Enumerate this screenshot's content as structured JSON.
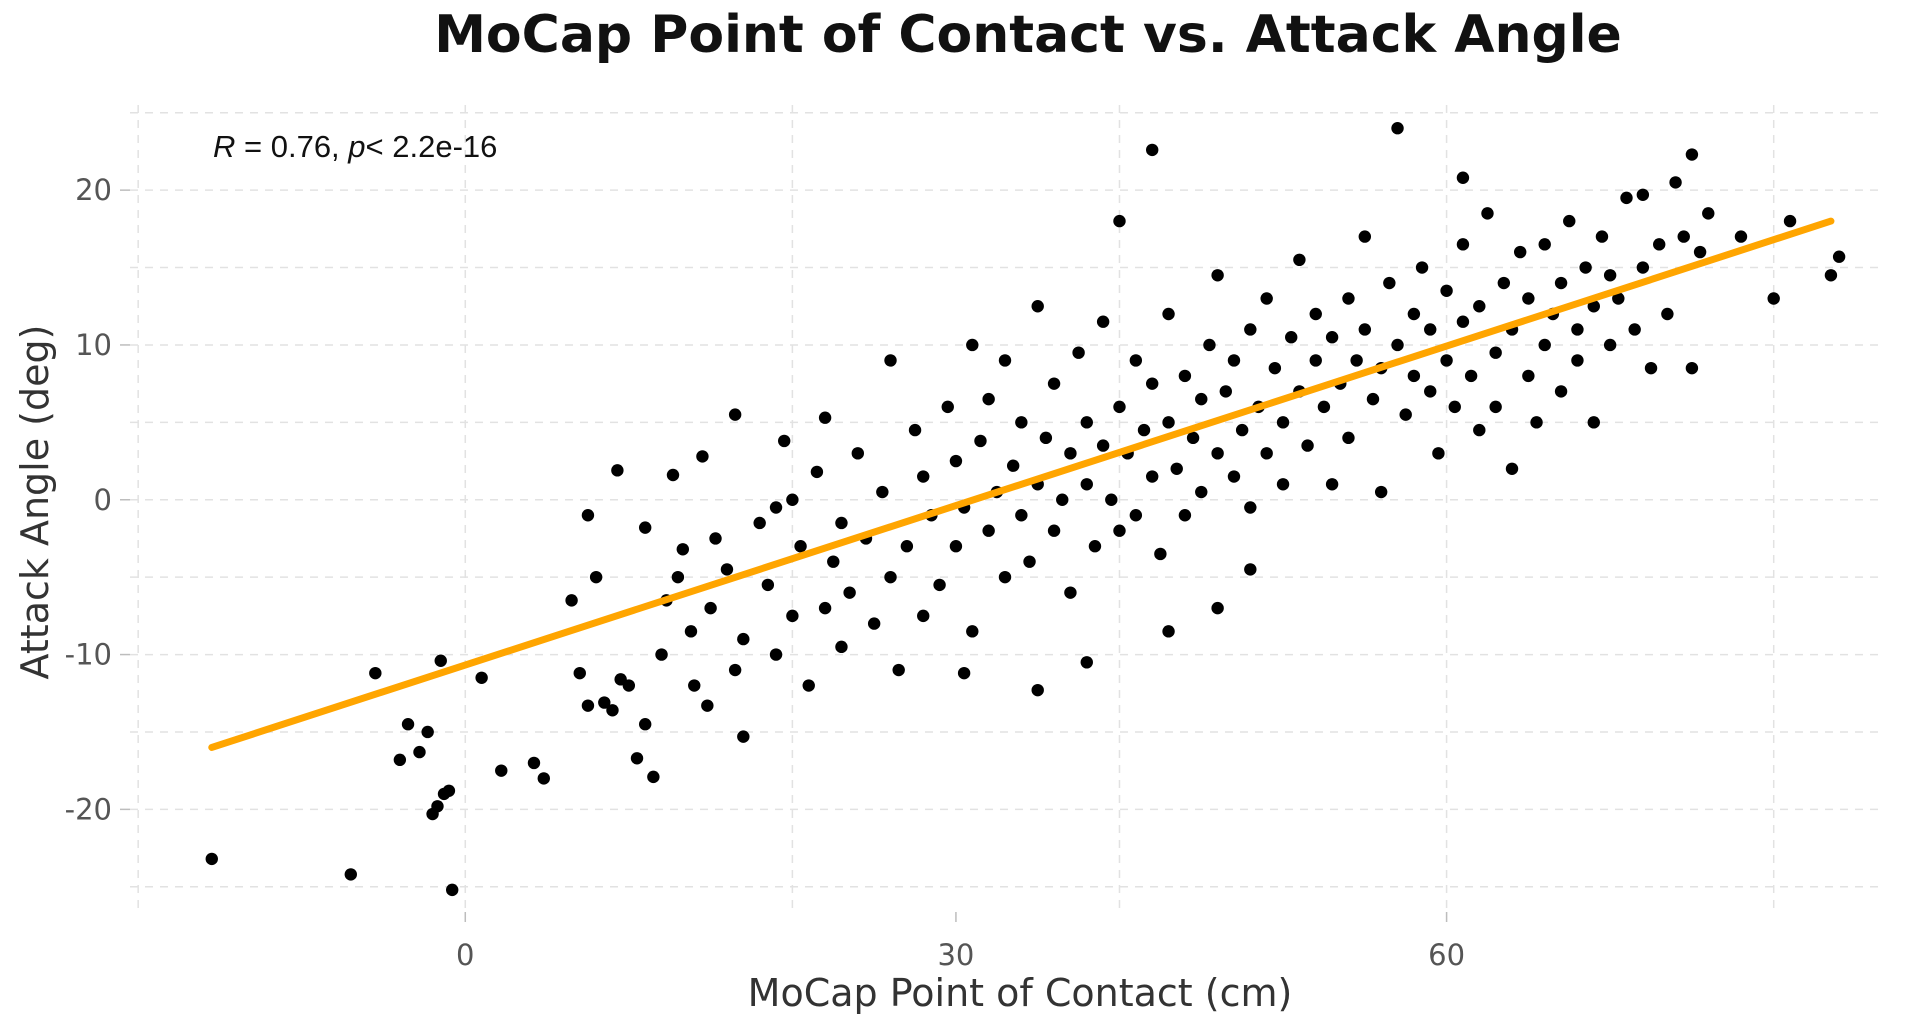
{
  "chart_data": {
    "type": "scatter",
    "title": "MoCap Point of Contact vs. Attack Angle",
    "xlabel": "MoCap Point of Contact (cm)",
    "ylabel": "Attack Angle (deg)",
    "xlim": [
      -20.5,
      86.5
    ],
    "ylim": [
      -26.5,
      25.5
    ],
    "x_ticks": [
      0,
      30,
      60
    ],
    "x_tick_labels": [
      "0",
      "30",
      "60"
    ],
    "y_ticks": [
      -20,
      -10,
      0,
      10,
      20
    ],
    "y_tick_labels": [
      "-20",
      "-10",
      "0",
      "10",
      "20"
    ],
    "grid": true,
    "annotation": {
      "r_symbol": "R",
      "r_text": " = 0.76, ",
      "p_symbol": "p",
      "p_text": "< 2.2e-16"
    },
    "fit_line": {
      "x": [
        -15.5,
        83.5
      ],
      "y": [
        -16.0,
        18.0
      ],
      "color": "#FFA500"
    },
    "series": [
      {
        "color": "#000000",
        "points": [
          [
            -15.5,
            -23.2
          ],
          [
            -7,
            -24.2
          ],
          [
            -5.5,
            -11.2
          ],
          [
            -4,
            -16.8
          ],
          [
            -3.5,
            -14.5
          ],
          [
            -2.8,
            -16.3
          ],
          [
            -2.3,
            -15
          ],
          [
            -2,
            -20.3
          ],
          [
            -1.7,
            -19.8
          ],
          [
            -1.3,
            -19
          ],
          [
            -1,
            -18.8
          ],
          [
            -0.8,
            -25.2
          ],
          [
            -1.5,
            -10.4
          ],
          [
            1,
            -11.5
          ],
          [
            2.2,
            -17.5
          ],
          [
            4.2,
            -17
          ],
          [
            4.8,
            -18
          ],
          [
            6.5,
            -6.5
          ],
          [
            7,
            -11.2
          ],
          [
            7.5,
            -1
          ],
          [
            7.5,
            -13.3
          ],
          [
            8,
            -5
          ],
          [
            8.5,
            -13.1
          ],
          [
            9,
            -13.6
          ],
          [
            9.3,
            1.9
          ],
          [
            9.5,
            -11.6
          ],
          [
            10,
            -12
          ],
          [
            10.5,
            -16.7
          ],
          [
            11,
            -1.8
          ],
          [
            11,
            -14.5
          ],
          [
            11.5,
            -17.9
          ],
          [
            12,
            -10
          ],
          [
            12.3,
            -6.5
          ],
          [
            12.7,
            1.6
          ],
          [
            13,
            -5
          ],
          [
            13.3,
            -3.2
          ],
          [
            13.8,
            -8.5
          ],
          [
            14,
            -12
          ],
          [
            14.5,
            2.8
          ],
          [
            14.8,
            -13.3
          ],
          [
            15,
            -7
          ],
          [
            15.3,
            -2.5
          ],
          [
            16,
            -4.5
          ],
          [
            16.5,
            -11
          ],
          [
            16.5,
            5.5
          ],
          [
            17,
            -9
          ],
          [
            17,
            -15.3
          ],
          [
            18,
            -1.5
          ],
          [
            18.5,
            -5.5
          ],
          [
            19,
            -0.5
          ],
          [
            19,
            -10
          ],
          [
            19.5,
            3.8
          ],
          [
            20,
            0
          ],
          [
            20,
            -7.5
          ],
          [
            20.5,
            -3
          ],
          [
            21,
            -12
          ],
          [
            21.5,
            1.8
          ],
          [
            22,
            -7
          ],
          [
            22,
            5.3
          ],
          [
            22.5,
            -4
          ],
          [
            23,
            -1.5
          ],
          [
            23,
            -9.5
          ],
          [
            23.5,
            -6
          ],
          [
            24,
            3
          ],
          [
            24.5,
            -2.5
          ],
          [
            25,
            -8
          ],
          [
            25.5,
            0.5
          ],
          [
            26,
            -5
          ],
          [
            26,
            9
          ],
          [
            26.5,
            -11
          ],
          [
            27,
            -3
          ],
          [
            27.5,
            4.5
          ],
          [
            28,
            -7.5
          ],
          [
            28,
            1.5
          ],
          [
            28.5,
            -1
          ],
          [
            29,
            -5.5
          ],
          [
            29.5,
            6
          ],
          [
            30,
            -3
          ],
          [
            30,
            2.5
          ],
          [
            30.5,
            -0.5
          ],
          [
            31,
            -8.5
          ],
          [
            31,
            10
          ],
          [
            31.5,
            3.8
          ],
          [
            32,
            -2
          ],
          [
            32,
            6.5
          ],
          [
            32.5,
            0.5
          ],
          [
            33,
            -5
          ],
          [
            33,
            9
          ],
          [
            33.5,
            2.2
          ],
          [
            34,
            -1
          ],
          [
            34,
            5
          ],
          [
            34.5,
            -4
          ],
          [
            35,
            1
          ],
          [
            35,
            12.5
          ],
          [
            35.5,
            4
          ],
          [
            36,
            -2
          ],
          [
            36,
            7.5
          ],
          [
            36.5,
            0
          ],
          [
            37,
            3
          ],
          [
            37,
            -6
          ],
          [
            37.5,
            9.5
          ],
          [
            38,
            1
          ],
          [
            38,
            5
          ],
          [
            38.5,
            -3
          ],
          [
            39,
            3.5
          ],
          [
            39,
            11.5
          ],
          [
            39.5,
            0
          ],
          [
            40,
            6
          ],
          [
            40,
            -2
          ],
          [
            40.5,
            3
          ],
          [
            41,
            9
          ],
          [
            41,
            -1
          ],
          [
            41.5,
            4.5
          ],
          [
            42,
            1.5
          ],
          [
            42,
            7.5
          ],
          [
            42.5,
            -3.5
          ],
          [
            43,
            5
          ],
          [
            43,
            12
          ],
          [
            43.5,
            2
          ],
          [
            44,
            8
          ],
          [
            44,
            -1
          ],
          [
            44.5,
            4
          ],
          [
            45,
            6.5
          ],
          [
            45,
            0.5
          ],
          [
            45.5,
            10
          ],
          [
            46,
            3
          ],
          [
            46,
            14.5
          ],
          [
            46.5,
            7
          ],
          [
            47,
            1.5
          ],
          [
            47,
            9
          ],
          [
            47.5,
            4.5
          ],
          [
            48,
            11
          ],
          [
            48,
            -0.5
          ],
          [
            48.5,
            6
          ],
          [
            49,
            3
          ],
          [
            49,
            13
          ],
          [
            49.5,
            8.5
          ],
          [
            50,
            5
          ],
          [
            50,
            1
          ],
          [
            50.5,
            10.5
          ],
          [
            51,
            7
          ],
          [
            51,
            15.5
          ],
          [
            51.5,
            3.5
          ],
          [
            52,
            9
          ],
          [
            52,
            12
          ],
          [
            52.5,
            6
          ],
          [
            53,
            10.5
          ],
          [
            53,
            1
          ],
          [
            53.5,
            7.5
          ],
          [
            54,
            13
          ],
          [
            54,
            4
          ],
          [
            54.5,
            9
          ],
          [
            55,
            11
          ],
          [
            55,
            17
          ],
          [
            55.5,
            6.5
          ],
          [
            56,
            8.5
          ],
          [
            56,
            0.5
          ],
          [
            56.5,
            14
          ],
          [
            57,
            10
          ],
          [
            57,
            24
          ],
          [
            57.5,
            5.5
          ],
          [
            58,
            12
          ],
          [
            58,
            8
          ],
          [
            58.5,
            15
          ],
          [
            59,
            7
          ],
          [
            59,
            11
          ],
          [
            59.5,
            3
          ],
          [
            60,
            9
          ],
          [
            60,
            13.5
          ],
          [
            60.5,
            6
          ],
          [
            61,
            11.5
          ],
          [
            61,
            16.5
          ],
          [
            61.5,
            8
          ],
          [
            62,
            4.5
          ],
          [
            62,
            12.5
          ],
          [
            62.5,
            18.5
          ],
          [
            63,
            9.5
          ],
          [
            63,
            6
          ],
          [
            63.5,
            14
          ],
          [
            64,
            11
          ],
          [
            64,
            2
          ],
          [
            64.5,
            16
          ],
          [
            65,
            8
          ],
          [
            65,
            13
          ],
          [
            65.5,
            5
          ],
          [
            66,
            10
          ],
          [
            66,
            16.5
          ],
          [
            66.5,
            12
          ],
          [
            67,
            7
          ],
          [
            67,
            14
          ],
          [
            67.5,
            18
          ],
          [
            68,
            11
          ],
          [
            68,
            9
          ],
          [
            68.5,
            15
          ],
          [
            69,
            12.5
          ],
          [
            69,
            5
          ],
          [
            69.5,
            17
          ],
          [
            70,
            10
          ],
          [
            70,
            14.5
          ],
          [
            70.5,
            13
          ],
          [
            71,
            19.5
          ],
          [
            71.5,
            11
          ],
          [
            72,
            15
          ],
          [
            72.5,
            8.5
          ],
          [
            73,
            16.5
          ],
          [
            73.5,
            12
          ],
          [
            74,
            20.5
          ],
          [
            74.5,
            17
          ],
          [
            75,
            22.3
          ],
          [
            75,
            8.5
          ],
          [
            75.5,
            16
          ],
          [
            76,
            18.5
          ],
          [
            78,
            17
          ],
          [
            80,
            13
          ],
          [
            81,
            18
          ],
          [
            83.5,
            14.5
          ],
          [
            84,
            15.7
          ],
          [
            48,
            -4.5
          ],
          [
            46,
            -7
          ],
          [
            43,
            -8.5
          ],
          [
            38,
            -10.5
          ],
          [
            35,
            -12.3
          ],
          [
            30.5,
            -11.2
          ],
          [
            42,
            22.6
          ],
          [
            40,
            18
          ],
          [
            61,
            20.8
          ],
          [
            72,
            19.7
          ]
        ]
      }
    ]
  }
}
